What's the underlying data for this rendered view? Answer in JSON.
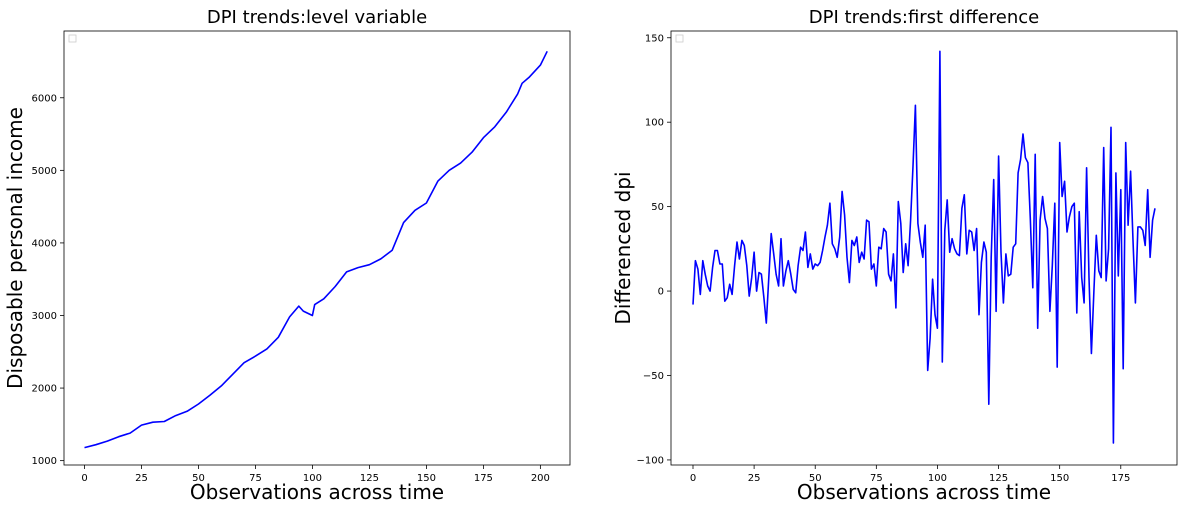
{
  "chart_data": [
    {
      "type": "line",
      "title": "DPI trends:level variable",
      "xlabel": "Observations across time",
      "ylabel": "Disposable personal income",
      "xlim": [
        -9,
        213
      ],
      "ylim": [
        940,
        6920
      ],
      "xticks": [
        0,
        25,
        50,
        75,
        100,
        125,
        150,
        175,
        200
      ],
      "yticks": [
        1000,
        2000,
        3000,
        4000,
        5000,
        6000
      ],
      "xtick_labels": [
        "0",
        "25",
        "50",
        "75",
        "100",
        "125",
        "150",
        "175",
        "200"
      ],
      "ytick_labels": [
        "1000",
        "2000",
        "3000",
        "4000",
        "5000",
        "6000"
      ],
      "grid": false,
      "legend": "top-left (empty)",
      "series": [
        {
          "color": "#0000ff",
          "x": [
            0,
            5,
            10,
            15,
            20,
            25,
            30,
            35,
            40,
            45,
            50,
            55,
            60,
            65,
            70,
            75,
            80,
            85,
            90,
            94,
            96,
            100,
            101,
            105,
            110,
            115,
            120,
            125,
            130,
            135,
            140,
            145,
            150,
            155,
            160,
            165,
            170,
            175,
            180,
            185,
            190,
            192,
            195,
            200,
            203
          ],
          "y": [
            1180,
            1220,
            1270,
            1330,
            1380,
            1490,
            1530,
            1540,
            1620,
            1680,
            1780,
            1900,
            2030,
            2190,
            2350,
            2440,
            2540,
            2700,
            2980,
            3130,
            3060,
            3000,
            3150,
            3230,
            3400,
            3600,
            3660,
            3700,
            3780,
            3900,
            4280,
            4450,
            4550,
            4850,
            5000,
            5100,
            5250,
            5450,
            5600,
            5800,
            6050,
            6200,
            6280,
            6450,
            6640
          ]
        }
      ]
    },
    {
      "type": "line",
      "title": "DPI trends:first difference",
      "xlabel": "Observations across time",
      "ylabel": "Differenced dpi",
      "xlim": [
        -9,
        198
      ],
      "ylim": [
        -103,
        154
      ],
      "xticks": [
        0,
        25,
        50,
        75,
        100,
        125,
        150,
        175
      ],
      "yticks": [
        -100,
        -50,
        0,
        50,
        100,
        150
      ],
      "xtick_labels": [
        "0",
        "25",
        "50",
        "75",
        "100",
        "125",
        "150",
        "175"
      ],
      "ytick_labels": [
        "−100",
        "−50",
        "0",
        "50",
        "100",
        "150"
      ],
      "grid": false,
      "legend": "top-left (empty)",
      "series": [
        {
          "color": "#0000ff",
          "x": [
            0,
            1,
            2,
            3,
            4,
            5,
            6,
            7,
            8,
            9,
            10,
            11,
            12,
            13,
            14,
            15,
            16,
            17,
            18,
            19,
            20,
            21,
            22,
            23,
            24,
            25,
            26,
            27,
            28,
            29,
            30,
            31,
            32,
            33,
            34,
            35,
            36,
            37,
            38,
            39,
            40,
            41,
            42,
            43,
            44,
            45,
            46,
            47,
            48,
            49,
            50,
            51,
            52,
            53,
            54,
            55,
            56,
            57,
            58,
            59,
            60,
            61,
            62,
            63,
            64,
            65,
            66,
            67,
            68,
            69,
            70,
            71,
            72,
            73,
            74,
            75,
            76,
            77,
            78,
            79,
            80,
            81,
            82,
            83,
            84,
            85,
            86,
            87,
            88,
            89,
            90,
            91,
            92,
            93,
            94,
            95,
            96,
            97,
            98,
            99,
            100,
            101,
            102,
            103,
            104,
            105,
            106,
            107,
            108,
            109,
            110,
            111,
            112,
            113,
            114,
            115,
            116,
            117,
            118,
            119,
            120,
            121,
            122,
            123,
            124,
            125,
            126,
            127,
            128,
            129,
            130,
            131,
            132,
            133,
            134,
            135,
            136,
            137,
            138,
            139,
            140,
            141,
            142,
            143,
            144,
            145,
            146,
            147,
            148,
            149,
            150,
            151,
            152,
            153,
            154,
            155,
            156,
            157,
            158,
            159,
            160,
            161,
            162,
            163,
            164,
            165,
            166,
            167,
            168,
            169,
            170,
            171,
            172,
            173,
            174,
            175,
            176,
            177,
            178,
            179,
            180,
            181,
            182,
            183,
            184,
            185,
            186,
            187,
            188,
            189
          ],
          "y": [
            -8,
            18,
            13,
            -2,
            18,
            10,
            3,
            0,
            14,
            24,
            24,
            16,
            16,
            -6,
            -4,
            4,
            -2,
            15,
            29,
            19,
            30,
            27,
            15,
            -3,
            8,
            23,
            0,
            11,
            10,
            -4,
            -19,
            8,
            34,
            22,
            10,
            3,
            31,
            3,
            12,
            18,
            10,
            1,
            -1,
            15,
            26,
            24,
            35,
            14,
            22,
            13,
            16,
            15,
            17,
            24,
            32,
            39,
            52,
            28,
            25,
            20,
            32,
            59,
            45,
            20,
            5,
            30,
            27,
            32,
            17,
            23,
            19,
            42,
            41,
            13,
            16,
            3,
            26,
            25,
            37,
            35,
            10,
            6,
            22,
            -10,
            53,
            40,
            11,
            28,
            15,
            42,
            74,
            110,
            40,
            29,
            20,
            39,
            -47,
            -28,
            7,
            -14,
            -22,
            142,
            -42,
            36,
            54,
            23,
            31,
            25,
            22,
            21,
            49,
            57,
            22,
            36,
            35,
            24,
            37,
            -14,
            17,
            29,
            23,
            -67,
            20,
            66,
            -12,
            80,
            23,
            -7,
            22,
            9,
            10,
            26,
            28,
            70,
            78,
            93,
            79,
            76,
            43,
            2,
            81,
            -22,
            42,
            56,
            43,
            37,
            -12,
            15,
            52,
            -45,
            88,
            56,
            65,
            35,
            44,
            50,
            52,
            -13,
            47,
            8,
            -7,
            73,
            8,
            -37,
            0,
            33,
            12,
            8,
            85,
            6,
            25,
            97,
            -90,
            70,
            9,
            60,
            -46,
            88,
            39,
            71,
            30,
            -7,
            38,
            38,
            36,
            27,
            60,
            20,
            42,
            49
          ]
        }
      ]
    }
  ]
}
